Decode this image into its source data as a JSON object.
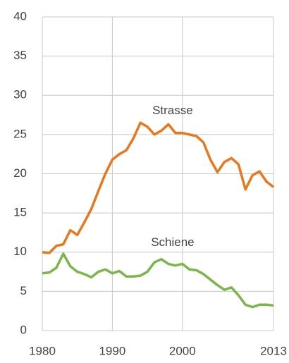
{
  "chart_data": {
    "type": "line",
    "x": [
      1980,
      1981,
      1982,
      1983,
      1984,
      1985,
      1986,
      1987,
      1988,
      1989,
      1990,
      1991,
      1992,
      1993,
      1994,
      1995,
      1996,
      1997,
      1998,
      1999,
      2000,
      2001,
      2002,
      2003,
      2004,
      2005,
      2006,
      2007,
      2008,
      2009,
      2010,
      2011,
      2012,
      2013
    ],
    "series": [
      {
        "name": "Strasse",
        "color": "#e8781e",
        "values": [
          10,
          9.9,
          10.8,
          11,
          12.8,
          12.2,
          13.8,
          15.5,
          17.8,
          20,
          21.8,
          22.5,
          23,
          24.5,
          26.5,
          26,
          25,
          25.5,
          26.3,
          25.2,
          25.2,
          25,
          24.8,
          24,
          21.8,
          20.2,
          21.5,
          22,
          21.2,
          18,
          19.8,
          20.3,
          19,
          18.3
        ]
      },
      {
        "name": "Schiene",
        "color": "#7ab648",
        "values": [
          7.3,
          7.4,
          8,
          9.8,
          8.2,
          7.5,
          7.2,
          6.8,
          7.5,
          7.8,
          7.3,
          7.6,
          6.9,
          6.9,
          7,
          7.5,
          8.7,
          9.1,
          8.5,
          8.3,
          8.5,
          7.8,
          7.7,
          7.2,
          6.5,
          5.8,
          5.2,
          5.5,
          4.5,
          3.3,
          3,
          3.3,
          3.3,
          3.2
        ]
      }
    ],
    "xlim": [
      1980,
      2013
    ],
    "xticks": [
      1980,
      1990,
      2000,
      2013
    ],
    "ylim": [
      0,
      40
    ],
    "yticks": [
      0,
      5,
      10,
      15,
      20,
      25,
      30,
      35,
      40
    ],
    "grid": true
  }
}
